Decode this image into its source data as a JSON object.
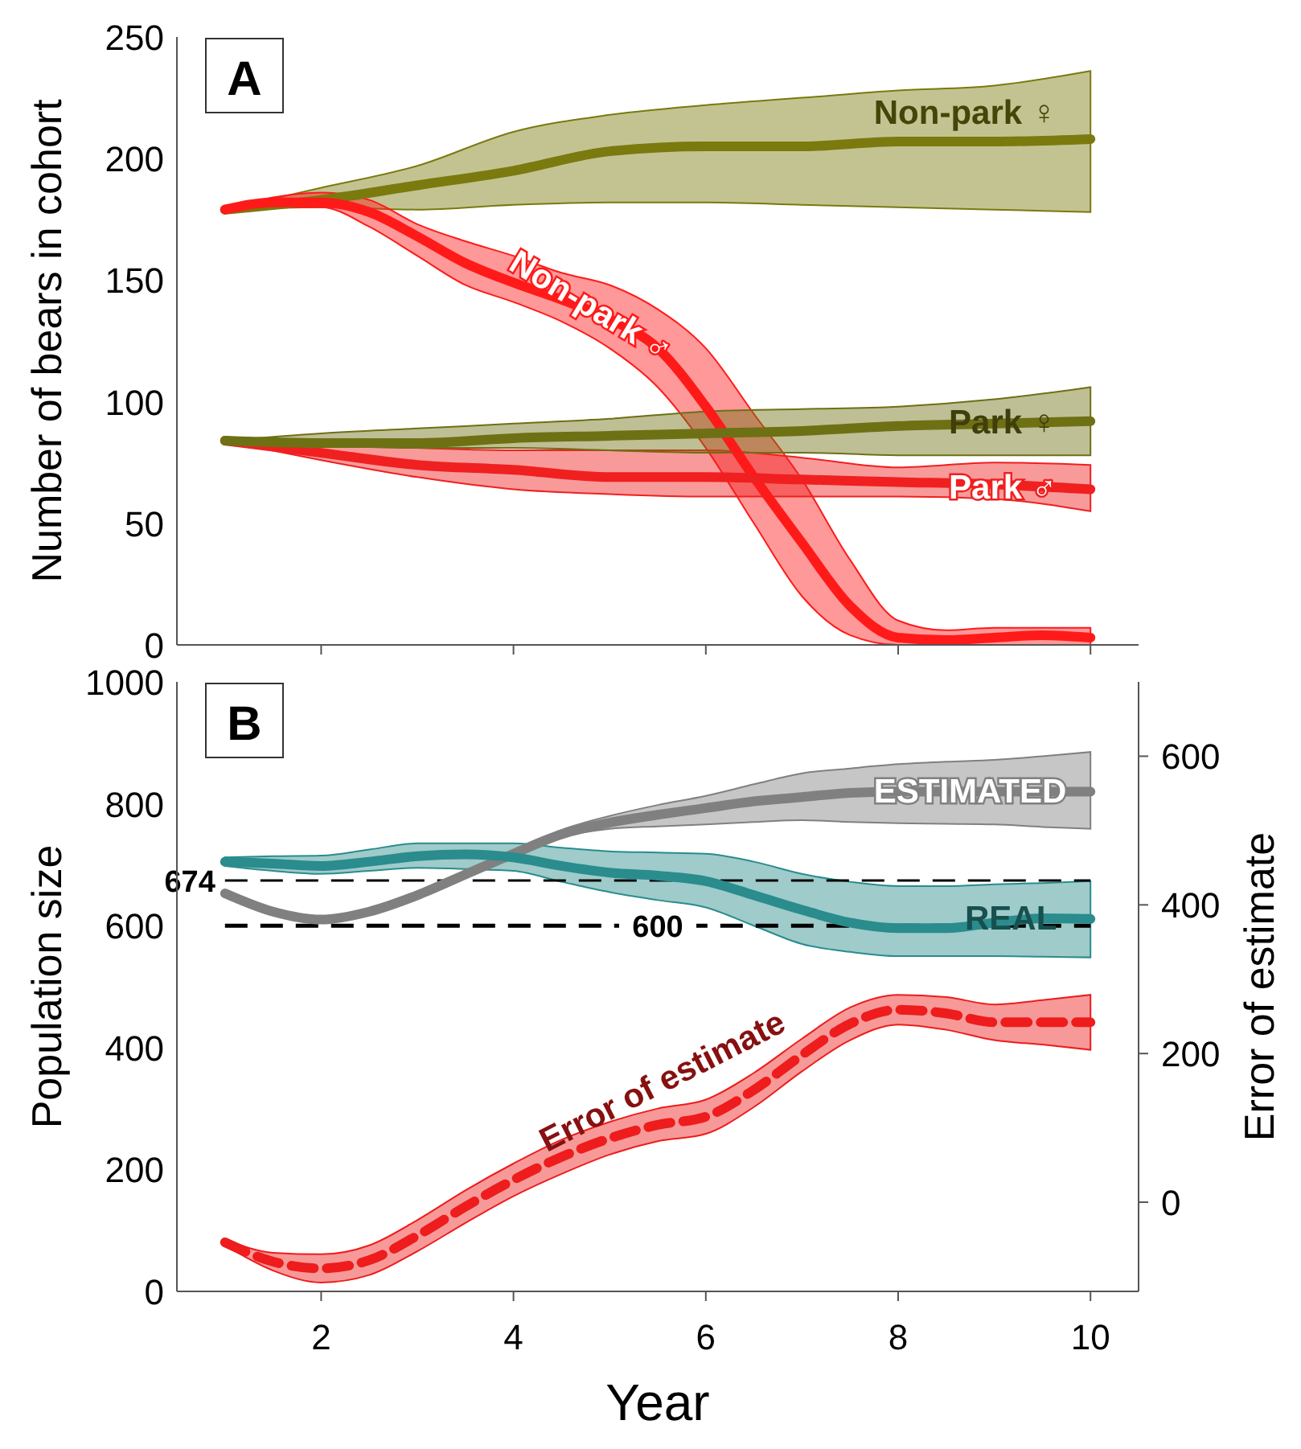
{
  "chart_data": [
    {
      "type": "line",
      "title": "A",
      "ylabel": "Number of bears in cohort",
      "xlim": [
        0.5,
        10.5
      ],
      "xticks": [
        2,
        4,
        6,
        8,
        10
      ],
      "ylim": [
        0,
        250
      ],
      "yticks": [
        0,
        50,
        100,
        150,
        200,
        250
      ],
      "tick_labels": "y",
      "grid": false,
      "legend": false,
      "marker": "none",
      "series": [
        {
          "name": "Non-park ♀",
          "color": "#7a7a0e",
          "x": [
            1,
            2,
            3,
            4,
            5,
            6,
            7,
            8,
            9,
            10
          ],
          "values": [
            179,
            183,
            189,
            195,
            203,
            205,
            205,
            207,
            207,
            208
          ],
          "lower": [
            179,
            180,
            179,
            181,
            182,
            182,
            181,
            180,
            179,
            178
          ],
          "upper": [
            179,
            188,
            197,
            211,
            218,
            222,
            225,
            228,
            230,
            236
          ]
        },
        {
          "name": "Non-park ♂",
          "color": "#ff1a1a",
          "x": [
            1,
            1.5,
            2,
            2.5,
            3,
            3.5,
            4,
            4.5,
            5,
            5.5,
            6,
            6.5,
            7,
            7.5,
            8,
            8.5,
            9,
            9.5,
            10
          ],
          "values": [
            179,
            182,
            182,
            178,
            168,
            157,
            149,
            142,
            134,
            122,
            98,
            69,
            42,
            16,
            3,
            2,
            3,
            4,
            3
          ],
          "lower": [
            179,
            180,
            180,
            172,
            160,
            148,
            141,
            133,
            122,
            106,
            81,
            50,
            20,
            4,
            0,
            0,
            0,
            0,
            0
          ],
          "upper": [
            179,
            184,
            186,
            183,
            173,
            166,
            160,
            153,
            148,
            138,
            122,
            95,
            68,
            35,
            10,
            6,
            7,
            7,
            7
          ]
        },
        {
          "name": "Park ♂",
          "color": "#f02020",
          "x": [
            1,
            2,
            3,
            4,
            5,
            6,
            7,
            8,
            9,
            10
          ],
          "values": [
            84,
            79,
            74,
            72,
            69,
            69,
            68,
            67,
            66,
            64
          ],
          "lower": [
            84,
            76,
            69,
            64,
            62,
            61,
            61,
            61,
            60,
            55
          ],
          "upper": [
            84,
            83,
            81,
            80,
            80,
            80,
            77,
            73,
            75,
            74
          ]
        },
        {
          "name": "Park ♀",
          "color": "#6e7014",
          "x": [
            1,
            2,
            3,
            4,
            5,
            6,
            7,
            8,
            9,
            10
          ],
          "values": [
            84,
            83,
            83,
            85,
            86,
            87,
            88,
            90,
            91,
            92
          ],
          "lower": [
            84,
            82,
            81,
            81,
            80,
            79,
            79,
            78,
            78,
            78
          ],
          "upper": [
            84,
            87,
            89,
            91,
            93,
            96,
            97,
            98,
            101,
            106
          ]
        }
      ]
    },
    {
      "type": "line",
      "title": "B",
      "xlabel": "Year",
      "ylabel": "Population size",
      "y2label": "Error of estimate",
      "xlim": [
        0.5,
        10.5
      ],
      "xticks": [
        2,
        4,
        6,
        8,
        10
      ],
      "ylim": [
        0,
        1000
      ],
      "yticks": [
        0,
        200,
        400,
        600,
        800,
        1000
      ],
      "y2lim": [
        -120,
        700
      ],
      "y2ticks": [
        0,
        200,
        400,
        600
      ],
      "grid": false,
      "legend": false,
      "marker": "none",
      "ref_lines": [
        {
          "axis": "y",
          "value": 674,
          "label": "674",
          "line_style": "dashed",
          "color": "#000000"
        },
        {
          "axis": "y",
          "value": 600,
          "label": "600",
          "line_style": "dashed",
          "color": "#000000"
        }
      ],
      "series": [
        {
          "name": "ESTIMATED",
          "color": "#808080",
          "x": [
            1,
            1.5,
            2,
            2.5,
            3,
            3.5,
            4,
            4.5,
            5,
            5.5,
            6,
            6.5,
            7,
            7.5,
            8,
            8.5,
            9,
            9.5,
            10
          ],
          "values": [
            653,
            623,
            610,
            623,
            650,
            684,
            718,
            750,
            769,
            782,
            793,
            804,
            811,
            818,
            820,
            820,
            820,
            820,
            820
          ],
          "lower": [
            653,
            623,
            610,
            623,
            650,
            684,
            716,
            745,
            759,
            763,
            766,
            770,
            773,
            770,
            768,
            767,
            766,
            762,
            759
          ],
          "upper": [
            653,
            623,
            610,
            623,
            650,
            684,
            720,
            757,
            780,
            798,
            813,
            832,
            850,
            858,
            865,
            869,
            872,
            878,
            885
          ]
        },
        {
          "name": "REAL",
          "color": "#2a8c8c",
          "x": [
            1,
            1.5,
            2,
            2.5,
            3,
            3.5,
            4,
            4.5,
            5,
            5.5,
            6,
            6.5,
            7,
            7.5,
            8,
            8.5,
            9,
            9.5,
            10
          ],
          "values": [
            705,
            702,
            698,
            705,
            714,
            717,
            712,
            698,
            687,
            682,
            673,
            650,
            626,
            605,
            596,
            596,
            605,
            612,
            611
          ],
          "lower": [
            698,
            690,
            685,
            690,
            695,
            693,
            690,
            672,
            655,
            642,
            630,
            600,
            570,
            557,
            550,
            550,
            550,
            549,
            548
          ],
          "upper": [
            712,
            714,
            715,
            725,
            735,
            735,
            735,
            728,
            722,
            720,
            718,
            705,
            685,
            672,
            665,
            665,
            668,
            670,
            673
          ]
        },
        {
          "name": "Error of estimate",
          "axis": "y2",
          "line_style": "dashed",
          "color": "#ee1c1c",
          "x": [
            1,
            1.5,
            2,
            2.5,
            3,
            3.5,
            4,
            4.5,
            5,
            5.5,
            6,
            6.5,
            7,
            7.5,
            8,
            8.5,
            9,
            9.5,
            10
          ],
          "values": [
            -54,
            -80,
            -89,
            -78,
            -45,
            -6,
            30,
            61,
            86,
            104,
            115,
            151,
            198,
            240,
            259,
            254,
            242,
            242,
            242
          ],
          "lower": [
            -58,
            -92,
            -108,
            -98,
            -66,
            -28,
            8,
            38,
            64,
            82,
            92,
            128,
            176,
            218,
            239,
            232,
            218,
            212,
            205
          ],
          "upper": [
            -50,
            -68,
            -70,
            -58,
            -24,
            16,
            52,
            84,
            108,
            126,
            138,
            174,
            220,
            262,
            279,
            276,
            266,
            272,
            279
          ]
        }
      ]
    }
  ]
}
